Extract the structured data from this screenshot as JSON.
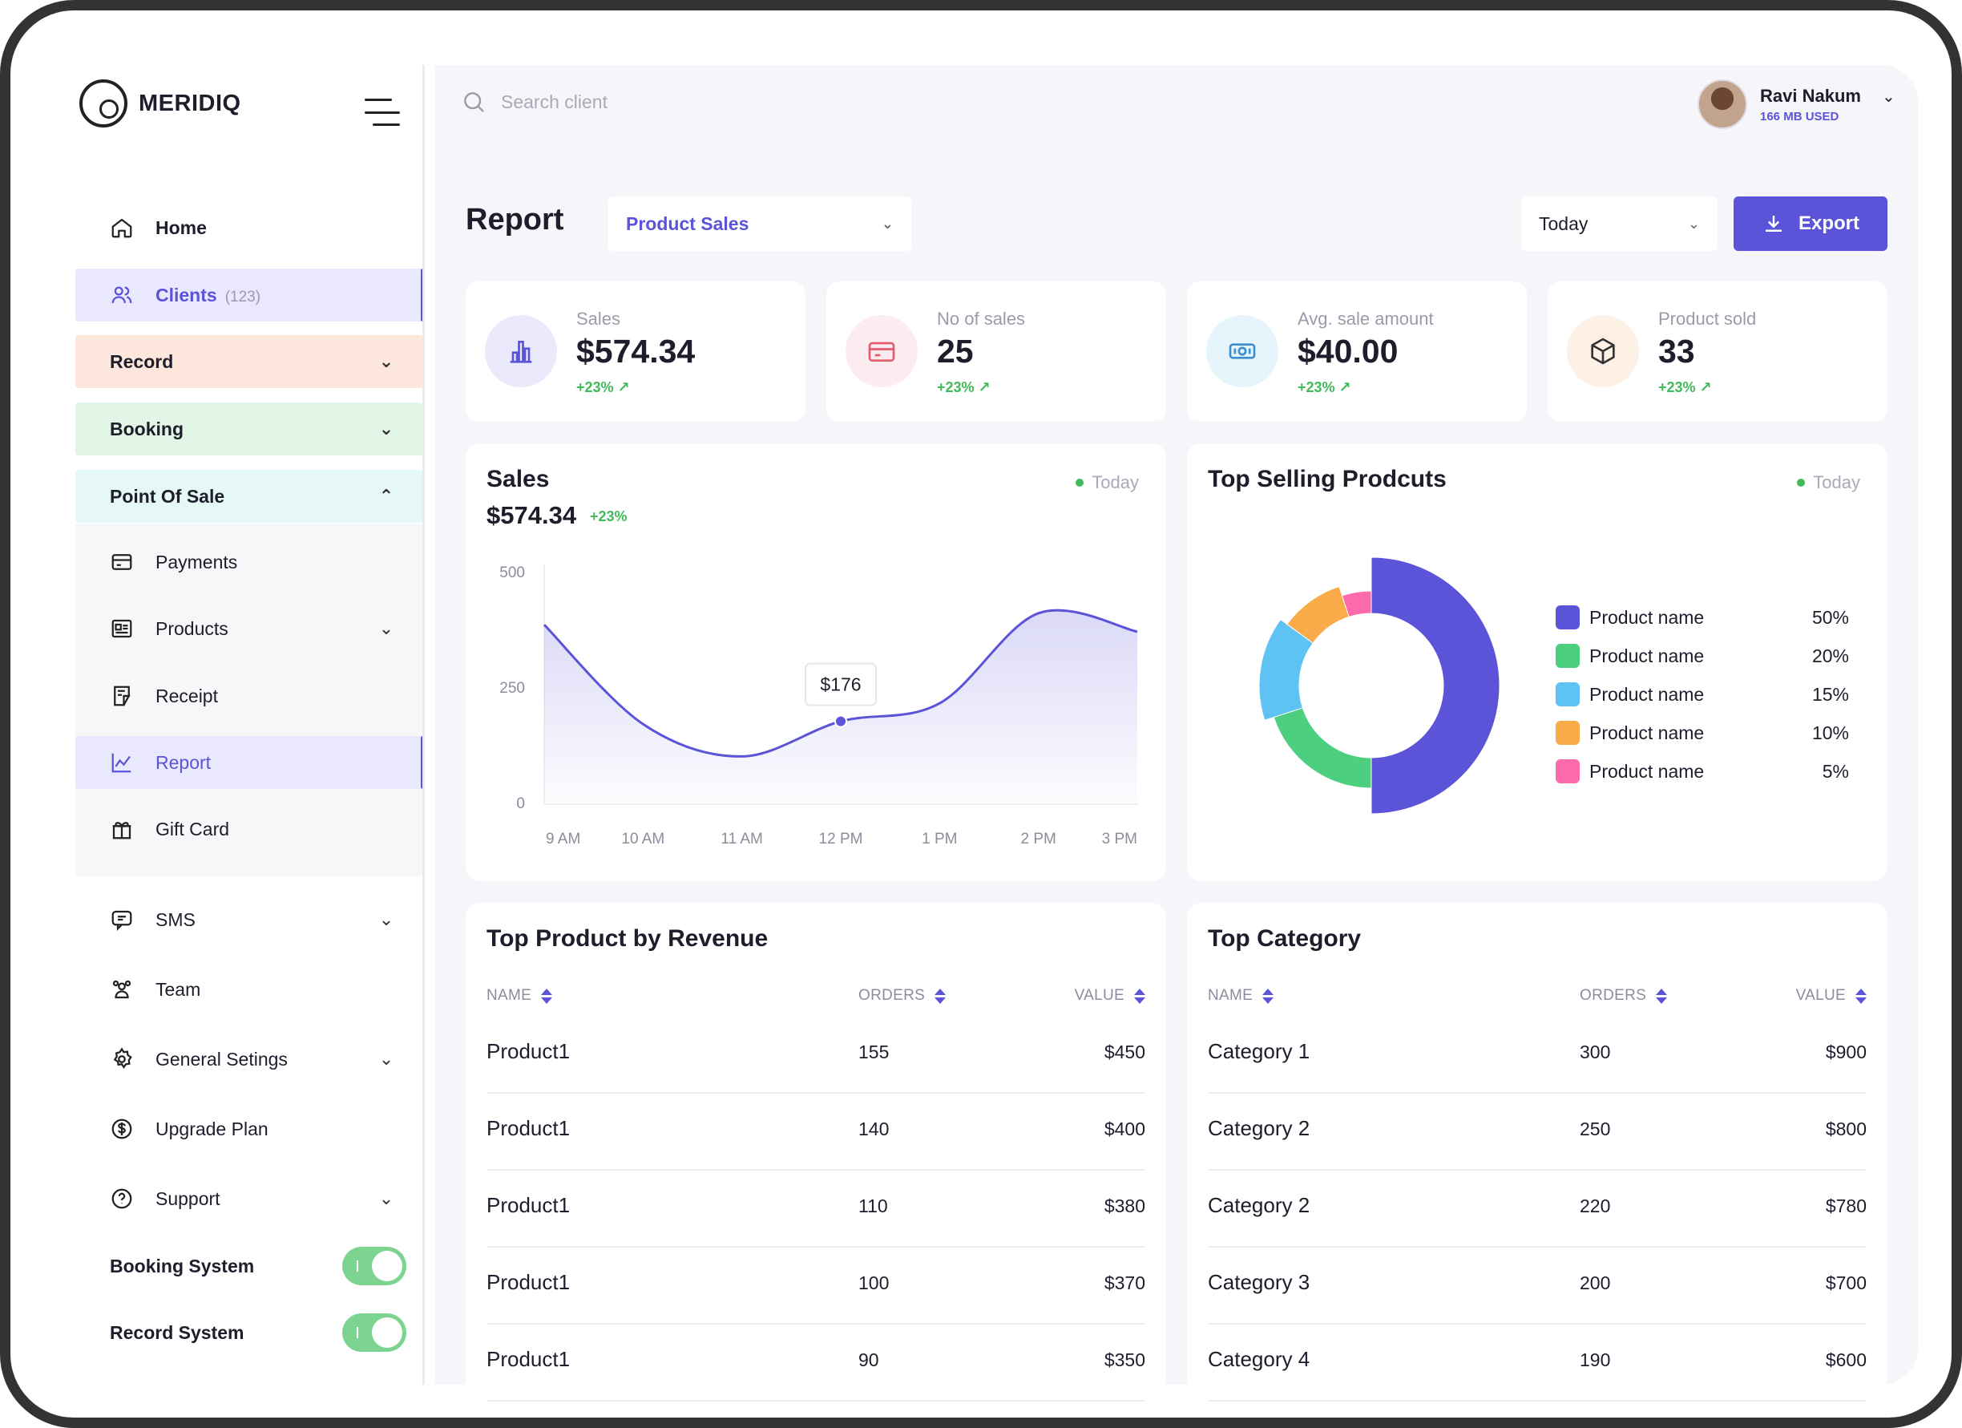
{
  "brand": {
    "name": "MERIDIQ"
  },
  "sidebar": {
    "home": "Home",
    "clients": "Clients",
    "clients_count": "(123)",
    "record": "Record",
    "booking": "Booking",
    "pos": "Point Of Sale",
    "payments": "Payments",
    "products": "Products",
    "receipt": "Receipt",
    "report": "Report",
    "gift_card": "Gift Card",
    "sms": "SMS",
    "team": "Team",
    "general_settings": "General Setings",
    "upgrade_plan": "Upgrade Plan",
    "support": "Support",
    "booking_system": "Booking System",
    "record_system": "Record System",
    "booking_system_on": true,
    "record_system_on": true
  },
  "topbar": {
    "search_placeholder": "Search client",
    "user_name": "Ravi Nakum",
    "user_storage": "166 MB USED"
  },
  "header": {
    "title": "Report",
    "report_type": "Product Sales",
    "period": "Today",
    "export_label": "Export"
  },
  "stats": [
    {
      "label": "Sales",
      "value": "$574.34",
      "change": "+23% ↗",
      "icon": "bar-chart-icon",
      "color": "#5b53d8"
    },
    {
      "label": "No of sales",
      "value": "25",
      "change": "+23% ↗",
      "icon": "credit-card-icon",
      "color": "#e25c6b"
    },
    {
      "label": "Avg. sale amount",
      "value": "$40.00",
      "change": "+23% ↗",
      "icon": "banknote-icon",
      "color": "#3aa6d8"
    },
    {
      "label": "Product sold",
      "value": "33",
      "change": "+23% ↗",
      "icon": "box-icon",
      "color": "#e0944a"
    }
  ],
  "sales_card": {
    "title": "Sales",
    "period": "Today",
    "value": "$574.34",
    "change": "+23%",
    "tooltip": "$176"
  },
  "top_selling": {
    "title": "Top Selling Prodcuts",
    "period": "Today"
  },
  "chart_data": [
    {
      "type": "area",
      "categories": [
        "9 AM",
        "10 AM",
        "11 AM",
        "12 PM",
        "1 PM",
        "2 PM",
        "3 PM"
      ],
      "x": [
        0,
        1,
        2,
        3,
        4,
        5,
        6
      ],
      "values": [
        385,
        170,
        100,
        176,
        215,
        410,
        370
      ],
      "ylim": [
        0,
        500
      ],
      "yticks": [
        0,
        250,
        500
      ],
      "grid": false,
      "highlight": {
        "index": 3,
        "label": "$176"
      },
      "color": "#5b53d8"
    },
    {
      "type": "pie",
      "style": "donut",
      "categories": [
        "Product name",
        "Product name",
        "Product name",
        "Product name",
        "Product name"
      ],
      "values": [
        50,
        20,
        15,
        10,
        5
      ],
      "labels": [
        "50%",
        "20%",
        "15%",
        "10%",
        "5%"
      ],
      "colors": [
        "#5b53d8",
        "#4ccf7e",
        "#5ec2f2",
        "#fbab4a",
        "#fd6aab"
      ],
      "legend": "right"
    }
  ],
  "revenue_table": {
    "title": "Top Product by Revenue",
    "columns": [
      "NAME",
      "ORDERS",
      "VALUE"
    ],
    "rows": [
      [
        "Product1",
        "155",
        "$450"
      ],
      [
        "Product1",
        "140",
        "$400"
      ],
      [
        "Product1",
        "110",
        "$380"
      ],
      [
        "Product1",
        "100",
        "$370"
      ],
      [
        "Product1",
        "90",
        "$350"
      ]
    ]
  },
  "category_table": {
    "title": "Top Category",
    "columns": [
      "NAME",
      "ORDERS",
      "VALUE"
    ],
    "rows": [
      [
        "Category 1",
        "300",
        "$900"
      ],
      [
        "Category 2",
        "250",
        "$800"
      ],
      [
        "Category 2",
        "220",
        "$780"
      ],
      [
        "Category 3",
        "200",
        "$700"
      ],
      [
        "Category 4",
        "190",
        "$600"
      ]
    ]
  }
}
